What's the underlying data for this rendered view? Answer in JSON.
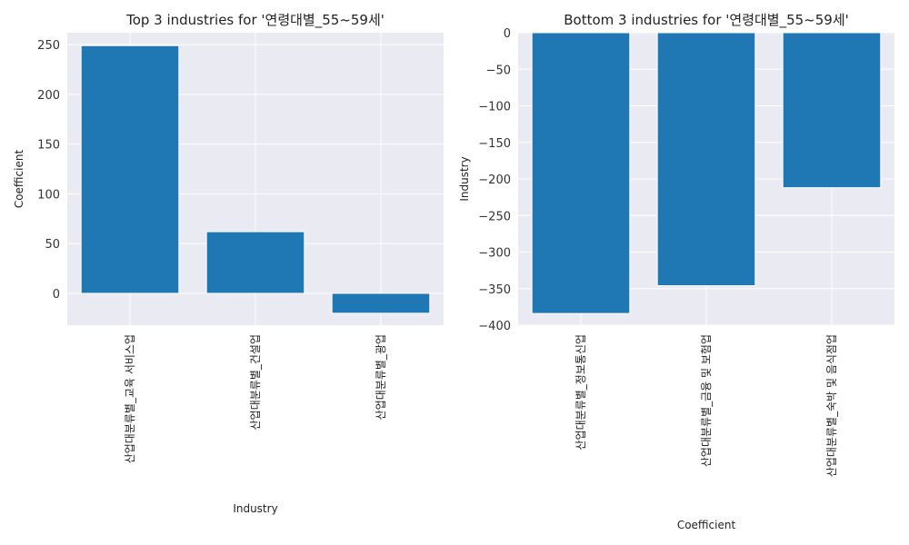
{
  "chart_data": [
    {
      "type": "bar",
      "title": "Top 3 industries for '연령대별_55~59세'",
      "xlabel": "Industry",
      "ylabel": "Coefficient",
      "categories": [
        "산업대분류별_교육 서비스업",
        "산업대분류별_건설업",
        "산업대분류별_광업"
      ],
      "values": [
        249,
        62,
        -20
      ],
      "ylim": [
        -32,
        262
      ],
      "yticks": [
        0,
        50,
        100,
        150,
        200,
        250
      ],
      "grid": true,
      "bar_color": "#1f77b4",
      "background": "#eaeaf2"
    },
    {
      "type": "bar",
      "title": "Bottom 3 industries for '연령대별_55~59세'",
      "xlabel": "Coefficient",
      "ylabel": "Industry",
      "categories": [
        "산업대분류별_정보통신업",
        "산업대분류별_금융 및 보험업",
        "산업대분류별_숙박 및 음식점업"
      ],
      "values": [
        -384,
        -346,
        -212
      ],
      "ylim": [
        -400,
        0
      ],
      "yticks": [
        0,
        -50,
        -100,
        -150,
        -200,
        -250,
        -300,
        -350,
        -400
      ],
      "grid": true,
      "bar_color": "#1f77b4",
      "background": "#eaeaf2"
    }
  ]
}
